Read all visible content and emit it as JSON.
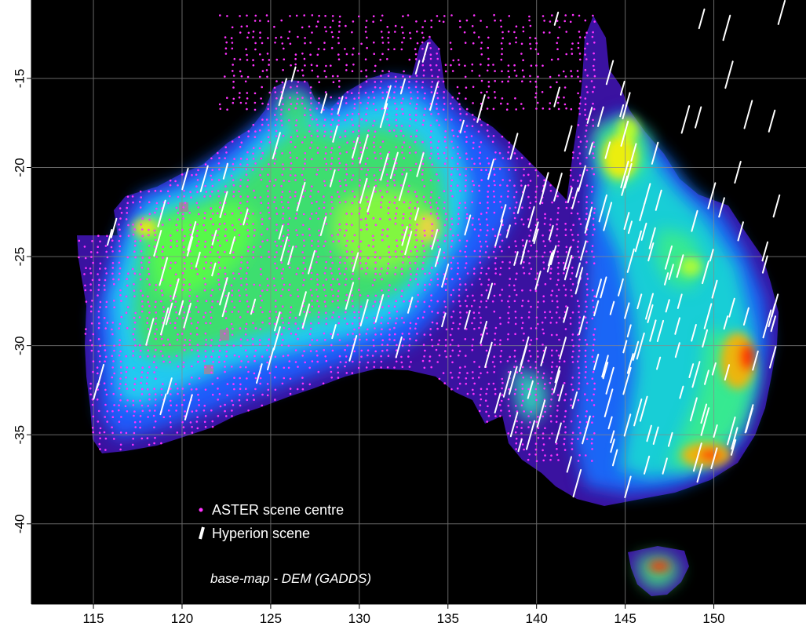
{
  "chart_data": {
    "type": "scatter",
    "xlim": [
      111.5,
      155.2
    ],
    "ylim": [
      -44.5,
      -10.6
    ],
    "x_ticks": [
      "115",
      "120",
      "125",
      "130",
      "135",
      "140",
      "145",
      "150"
    ],
    "y_ticks": [
      "-15",
      "-20",
      "-25",
      "-30",
      "-35",
      "-40"
    ],
    "grid": true,
    "legend_position": "bottom-left",
    "series": [
      {
        "name": "ASTER scene centre",
        "marker": "dot",
        "color": "#ff33ff"
      },
      {
        "name": "Hyperion scene",
        "marker": "line",
        "color": "#ffffff"
      }
    ],
    "annotation": "base-map - DEM (GADDS)"
  },
  "colors": {
    "background": "#000000",
    "aster": "#ff33ff",
    "hyperion": "#ffffff",
    "dem_low": "#4a0a8a",
    "dem_mid": "#22d0f0",
    "dem_high": "#ffee00",
    "dem_peak": "#ff2000"
  }
}
